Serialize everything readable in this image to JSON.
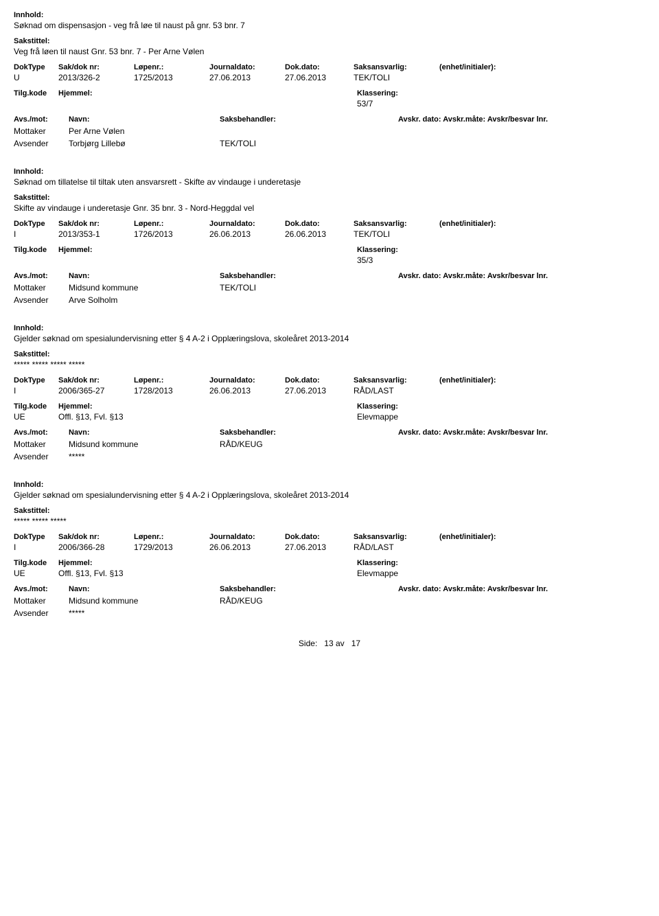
{
  "labels": {
    "innhold": "Innhold:",
    "sakstittel": "Sakstittel:",
    "doktype": "DokType",
    "saknr": "Sak/dok nr:",
    "lopenr": "Løpenr.:",
    "journaldato": "Journaldato:",
    "dokdato": "Dok.dato:",
    "saksansvarlig": "Saksansvarlig:",
    "enhet": "(enhet/initialer):",
    "tilgkode": "Tilg.kode",
    "hjemmel": "Hjemmel:",
    "klassering": "Klassering:",
    "avsmot": "Avs./mot:",
    "navn": "Navn:",
    "saksbehandler": "Saksbehandler:",
    "avskr": "Avskr. dato: Avskr.måte: Avskr/besvar lnr.",
    "mottaker": "Mottaker",
    "avsender": "Avsender"
  },
  "records": [
    {
      "innhold": "Søknad om dispensasjon - veg frå løe til naust på gnr. 53 bnr. 7",
      "sakstittel": "Veg frå løen til naust Gnr. 53 bnr. 7 - Per Arne Vølen",
      "doktype": "U",
      "saknr": "2013/326-2",
      "lopenr": "1725/2013",
      "jdato": "27.06.2013",
      "ddato": "27.06.2013",
      "saksansv": "TEK/TOLI",
      "tilgkode": "",
      "hjemmel": "",
      "klassering": "53/7",
      "parties": [
        {
          "role": "Mottaker",
          "name": "Per Arne Vølen",
          "handler": ""
        },
        {
          "role": "Avsender",
          "name": "Torbjørg Lillebø",
          "handler": "TEK/TOLI"
        }
      ]
    },
    {
      "innhold": "Søknad om tillatelse til tiltak uten ansvarsrett - Skifte av vindauge i underetasje",
      "sakstittel": "Skifte av vindauge i underetasje Gnr. 35 bnr. 3 - Nord-Heggdal vel",
      "doktype": "I",
      "saknr": "2013/353-1",
      "lopenr": "1726/2013",
      "jdato": "26.06.2013",
      "ddato": "26.06.2013",
      "saksansv": "TEK/TOLI",
      "tilgkode": "",
      "hjemmel": "",
      "klassering": "35/3",
      "parties": [
        {
          "role": "Mottaker",
          "name": "Midsund kommune",
          "handler": "TEK/TOLI"
        },
        {
          "role": "Avsender",
          "name": "Arve Solholm",
          "handler": ""
        }
      ]
    },
    {
      "innhold": "Gjelder søknad om spesialundervisning etter § 4 A-2 i Opplæringslova, skoleåret 2013-2014",
      "sakstittel": "***** ***** ***** *****",
      "doktype": "I",
      "saknr": "2006/365-27",
      "lopenr": "1728/2013",
      "jdato": "26.06.2013",
      "ddato": "27.06.2013",
      "saksansv": "RÅD/LAST",
      "tilgkode": "UE",
      "hjemmel": "Offl. §13, Fvl. §13",
      "klassering": "Elevmappe",
      "parties": [
        {
          "role": "Mottaker",
          "name": "Midsund kommune",
          "handler": "RÅD/KEUG"
        },
        {
          "role": "Avsender",
          "name": "*****",
          "handler": ""
        }
      ]
    },
    {
      "innhold": "Gjelder søknad om spesialundervisning etter § 4 A-2 i Opplæringslova, skoleåret 2013-2014",
      "sakstittel": "***** ***** *****",
      "doktype": "I",
      "saknr": "2006/366-28",
      "lopenr": "1729/2013",
      "jdato": "26.06.2013",
      "ddato": "27.06.2013",
      "saksansv": "RÅD/LAST",
      "tilgkode": "UE",
      "hjemmel": "Offl. §13, Fvl. §13",
      "klassering": "Elevmappe",
      "parties": [
        {
          "role": "Mottaker",
          "name": "Midsund kommune",
          "handler": "RÅD/KEUG"
        },
        {
          "role": "Avsender",
          "name": "*****",
          "handler": ""
        }
      ]
    }
  ],
  "footer": {
    "side": "Side:",
    "page": "13",
    "av": "av",
    "total": "17"
  }
}
